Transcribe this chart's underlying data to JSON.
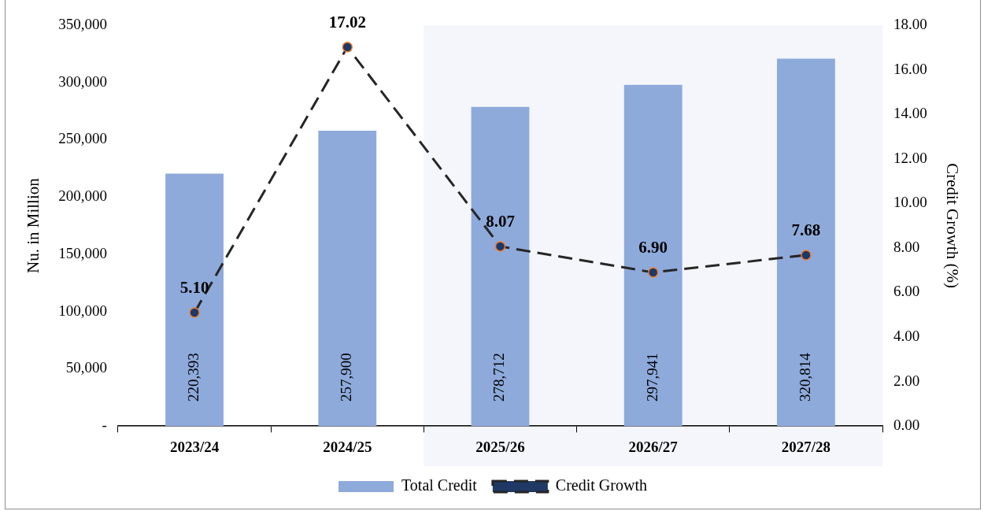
{
  "chart_data": {
    "type": "bar",
    "ylabel": "Nu. in Million",
    "y2label": "Credit Growth (%)",
    "categories": [
      "2023/24",
      "2024/25",
      "2025/26",
      "2026/27",
      "2027/28"
    ],
    "series": [
      {
        "name": "Total Credit",
        "color": "#8eaadb",
        "values": [
          220393,
          257900,
          278712,
          297941,
          320814
        ],
        "value_labels": [
          "220,393",
          "257,900",
          "278,712",
          "297,941",
          "320,814"
        ]
      },
      {
        "name": "Credit Growth",
        "type": "line",
        "axis": "y2",
        "color": "#262626",
        "values": [
          5.1,
          17.02,
          8.07,
          6.9,
          7.68
        ],
        "value_labels": [
          "5.10",
          "17.02",
          "8.07",
          "6.90",
          "7.68"
        ]
      }
    ],
    "ylim": [
      0,
      350000
    ],
    "yticks": [
      {
        "value": 0,
        "label": "-"
      },
      {
        "value": 50000,
        "label": "50,000"
      },
      {
        "value": 100000,
        "label": "100,000"
      },
      {
        "value": 150000,
        "label": "150,000"
      },
      {
        "value": 200000,
        "label": "200,000"
      },
      {
        "value": 250000,
        "label": "250,000"
      },
      {
        "value": 300000,
        "label": "300,000"
      },
      {
        "value": 350000,
        "label": "350,000"
      }
    ],
    "y2lim": [
      0,
      18
    ],
    "y2ticks": [
      {
        "value": 0,
        "label": "0.00"
      },
      {
        "value": 2,
        "label": "2.00"
      },
      {
        "value": 4,
        "label": "4.00"
      },
      {
        "value": 6,
        "label": "6.00"
      },
      {
        "value": 8,
        "label": "8.00"
      },
      {
        "value": 10,
        "label": "10.00"
      },
      {
        "value": 12,
        "label": "12.00"
      },
      {
        "value": 14,
        "label": "14.00"
      },
      {
        "value": 16,
        "label": "16.00"
      },
      {
        "value": 18,
        "label": "18.00"
      }
    ],
    "bands": [
      {
        "axis": "x",
        "from": "2025/26",
        "to": "2027/28",
        "color": "#f4f6fb"
      }
    ],
    "grid": false,
    "legend": "bottom",
    "marker": "circle",
    "line_style": "dashed"
  }
}
